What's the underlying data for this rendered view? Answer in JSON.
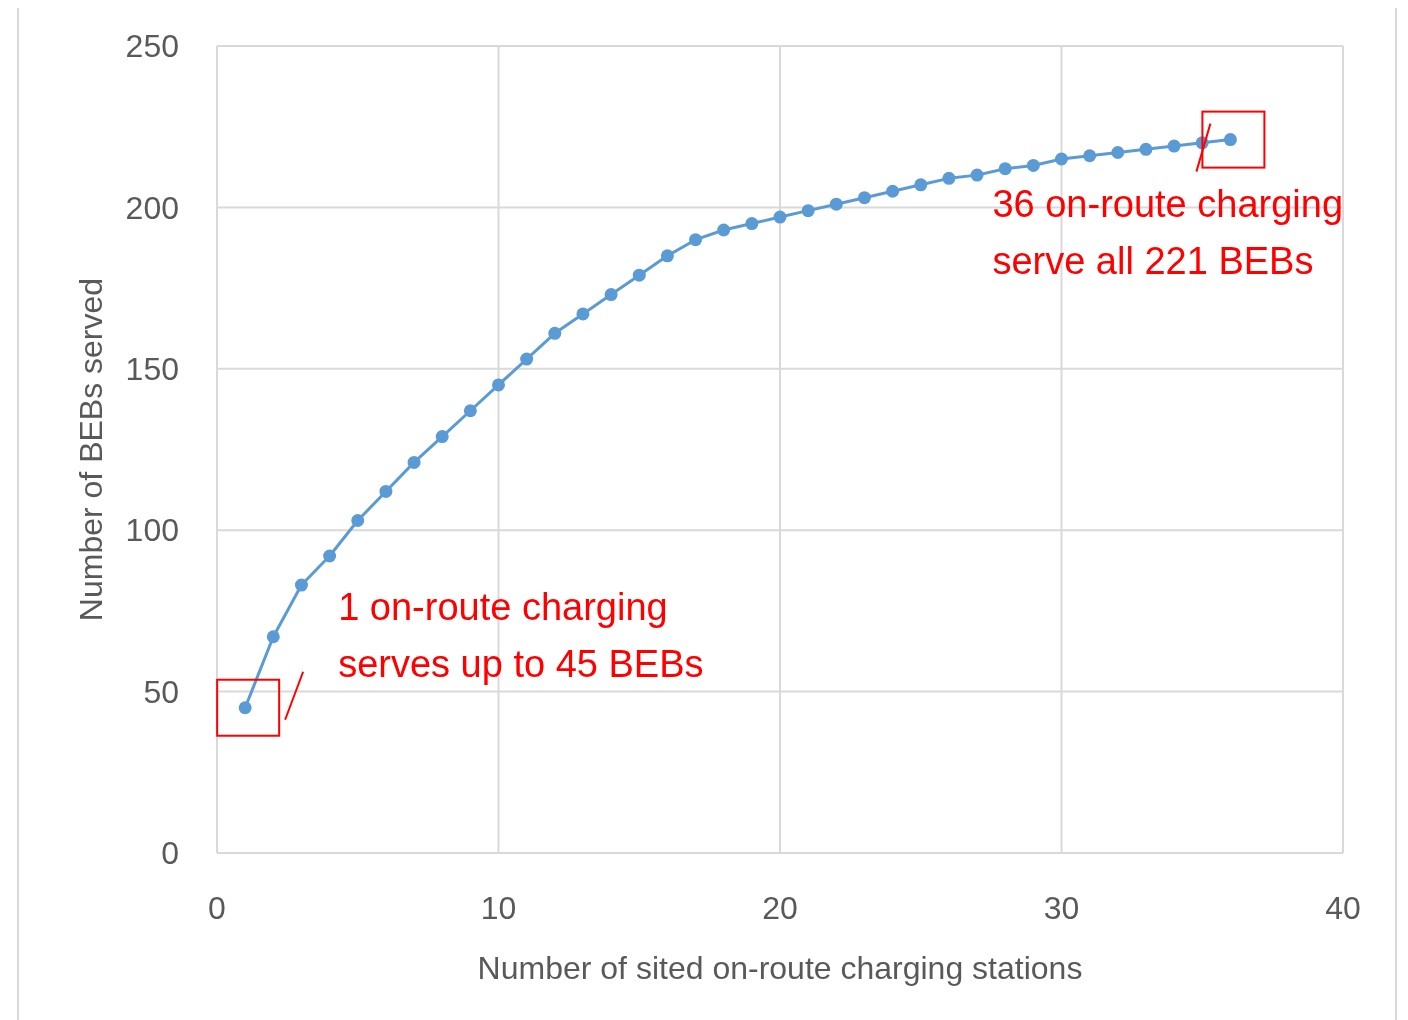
{
  "chart_data": {
    "type": "line",
    "xlabel": "Number of sited on-route charging stations",
    "ylabel": "Number of BEBs served",
    "x": [
      1,
      2,
      3,
      4,
      5,
      6,
      7,
      8,
      9,
      10,
      11,
      12,
      13,
      14,
      15,
      16,
      17,
      18,
      19,
      20,
      21,
      22,
      23,
      24,
      25,
      26,
      27,
      28,
      29,
      30,
      31,
      32,
      33,
      34,
      35,
      36
    ],
    "series": [
      {
        "color": "#5b9bd5",
        "values": [
          45,
          67,
          83,
          92,
          103,
          112,
          121,
          129,
          137,
          145,
          153,
          161,
          167,
          173,
          179,
          185,
          190,
          193,
          195,
          197,
          199,
          201,
          203,
          205,
          207,
          209,
          210,
          212,
          213,
          215,
          216,
          217,
          218,
          219,
          220,
          221
        ]
      }
    ],
    "xlim": [
      0,
      40
    ],
    "xticks": [
      0,
      10,
      20,
      30,
      40
    ],
    "ylim": [
      0,
      250
    ],
    "yticks": [
      0,
      50,
      100,
      150,
      200,
      250
    ],
    "grid": true,
    "marker": "circle",
    "line_style": "solid",
    "annotations": [
      {
        "text": "1 on-route charging\nserves up to 45 BEBs",
        "x": 1,
        "y": 45
      },
      {
        "text": "36 on-route charging\nserve all 221 BEBs",
        "x": 36,
        "y": 221
      }
    ]
  }
}
